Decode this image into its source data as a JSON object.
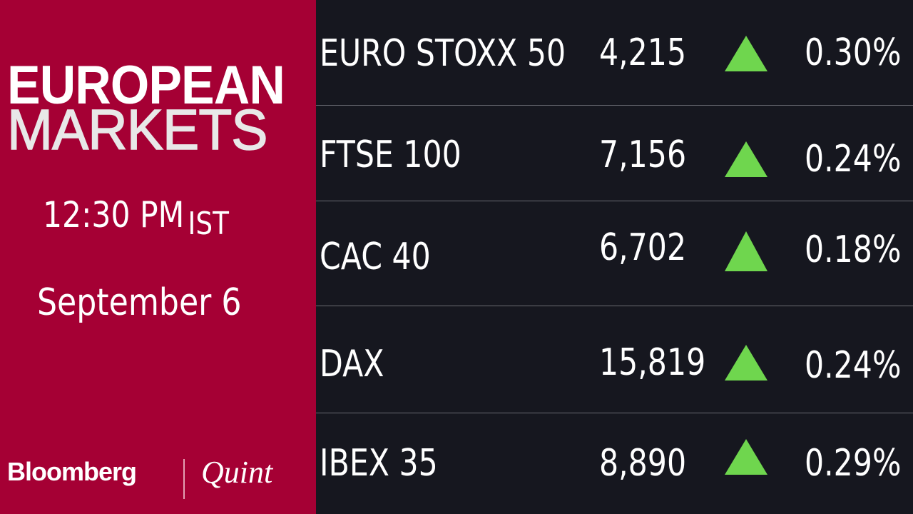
{
  "header": {
    "logo_line1": "EUROPEAN",
    "logo_line2": "MARKETS",
    "time": "12:30 PM",
    "timezone": "IST",
    "date": "September 6"
  },
  "brand": {
    "name": "Bloomberg",
    "partner": "Quint"
  },
  "colors": {
    "panel": "#a50034",
    "background": "#16171f",
    "up": "#6fd64e"
  },
  "indices": [
    {
      "name": "EURO STOXX 50",
      "value": "4,215",
      "direction": "up",
      "change": "0.30%"
    },
    {
      "name": "FTSE 100",
      "value": "7,156",
      "direction": "up",
      "change": "0.24%"
    },
    {
      "name": "CAC 40",
      "value": "6,702",
      "direction": "up",
      "change": "0.18%"
    },
    {
      "name": "DAX",
      "value": "15,819",
      "direction": "up",
      "change": "0.24%"
    },
    {
      "name": "IBEX 35",
      "value": "8,890",
      "direction": "up",
      "change": "0.29%"
    }
  ]
}
